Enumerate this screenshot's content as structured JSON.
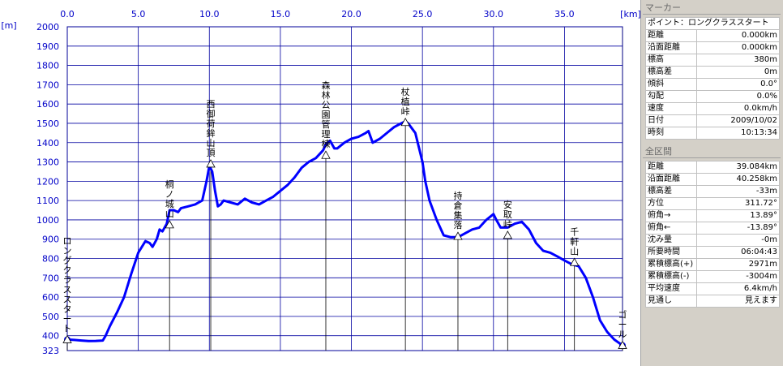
{
  "chart_data": {
    "type": "line",
    "xunit": "[km]",
    "yunit": "[m]",
    "x_ticks": [
      "0.0",
      "5.0",
      "10.0",
      "15.0",
      "20.0",
      "25.0",
      "30.0",
      "35.0"
    ],
    "x_tick_values": [
      0,
      5,
      10,
      15,
      20,
      25,
      30,
      35
    ],
    "y_ticks": [
      "2000",
      "1900",
      "1800",
      "1700",
      "1600",
      "1500",
      "1400",
      "1300",
      "1200",
      "1100",
      "1000",
      "900",
      "800",
      "700",
      "600",
      "500",
      "400",
      "323"
    ],
    "y_tick_values": [
      2000,
      1900,
      1800,
      1700,
      1600,
      1500,
      1400,
      1300,
      1200,
      1100,
      1000,
      900,
      800,
      700,
      600,
      500,
      400,
      323
    ],
    "xlim": [
      0,
      39.084
    ],
    "ylim": [
      323,
      2000
    ],
    "line_color": "#0000ff",
    "series": [
      {
        "x": [
          0,
          0.5,
          1,
          1.5,
          2,
          2.5,
          2.7,
          3,
          3.5,
          4,
          4.5,
          5,
          5.5,
          5.8,
          6,
          6.3,
          6.5,
          6.7,
          7,
          7.2,
          7.5,
          7.8,
          8,
          8.5,
          9,
          9.5,
          9.8,
          10,
          10.2,
          10.4,
          10.6,
          10.8,
          11,
          11.5,
          12,
          12.5,
          13,
          13.5,
          14,
          14.5,
          15,
          15.5,
          16,
          16.5,
          17,
          17.5,
          18,
          18.2,
          18.5,
          18.8,
          19,
          19.5,
          20,
          20.5,
          21,
          21.2,
          21.5,
          22,
          22.5,
          23,
          23.5,
          23.8,
          24,
          24.5,
          25,
          25.2,
          25.5,
          26,
          26.5,
          27,
          27.5,
          28,
          28.5,
          29,
          29.5,
          30,
          30.2,
          30.5,
          31,
          31.5,
          32,
          32.5,
          33,
          33.5,
          34,
          34.5,
          35,
          35.5,
          36,
          36.5,
          37,
          37.5,
          38,
          38.5,
          39.084
        ],
        "y": [
          380,
          378,
          375,
          372,
          373,
          375,
          400,
          450,
          520,
          600,
          720,
          830,
          890,
          880,
          860,
          900,
          950,
          940,
          980,
          1050,
          1050,
          1040,
          1060,
          1070,
          1080,
          1100,
          1200,
          1280,
          1250,
          1150,
          1070,
          1080,
          1100,
          1090,
          1080,
          1110,
          1090,
          1080,
          1100,
          1120,
          1150,
          1180,
          1220,
          1270,
          1300,
          1320,
          1360,
          1390,
          1410,
          1370,
          1370,
          1400,
          1420,
          1430,
          1450,
          1460,
          1400,
          1420,
          1450,
          1480,
          1500,
          1510,
          1500,
          1450,
          1300,
          1200,
          1100,
          1000,
          920,
          910,
          910,
          930,
          950,
          960,
          1000,
          1030,
          1000,
          960,
          960,
          980,
          990,
          950,
          880,
          840,
          830,
          810,
          790,
          770,
          760,
          700,
          600,
          480,
          420,
          380,
          350
        ]
      }
    ],
    "markers": [
      {
        "label": "ロングクラススタート",
        "x": 0,
        "y": 380
      },
      {
        "label": "桐ノ城山",
        "x": 7.2,
        "y": 975
      },
      {
        "label": "西御荷鉾山頂",
        "x": 10.1,
        "y": 1290
      },
      {
        "label": "森林公園管理棟",
        "x": 18.2,
        "y": 1335
      },
      {
        "label": "杖植峠",
        "x": 23.8,
        "y": 1505
      },
      {
        "label": "持倉集落",
        "x": 27.5,
        "y": 915
      },
      {
        "label": "安取峠",
        "x": 31,
        "y": 920
      },
      {
        "label": "千軒山",
        "x": 35.7,
        "y": 780
      },
      {
        "label": "ゴール",
        "x": 39.084,
        "y": 350
      }
    ]
  },
  "sidebar": {
    "marker_title": "マーカー",
    "marker_point": "ポイント：ロングクラススタート",
    "marker_rows": [
      {
        "k": "距離",
        "v": "0.000km"
      },
      {
        "k": "沿面距離",
        "v": "0.000km"
      },
      {
        "k": "標高",
        "v": "380m"
      },
      {
        "k": "標高差",
        "v": "0m"
      },
      {
        "k": "傾斜",
        "v": "0.0°"
      },
      {
        "k": "勾配",
        "v": "0.0%"
      },
      {
        "k": "速度",
        "v": "0.0km/h"
      },
      {
        "k": "日付",
        "v": "2009/10/02"
      },
      {
        "k": "時刻",
        "v": "10:13:34"
      }
    ],
    "range_title": "全区間",
    "range_rows": [
      {
        "k": "距離",
        "v": "39.084km"
      },
      {
        "k": "沿面距離",
        "v": "40.258km"
      },
      {
        "k": "標高差",
        "v": "-33m"
      },
      {
        "k": "方位",
        "v": "311.72°"
      },
      {
        "k": "俯角→",
        "v": "13.89°"
      },
      {
        "k": "俯角←",
        "v": "-13.89°"
      },
      {
        "k": "沈み量",
        "v": "-0m"
      },
      {
        "k": "所要時間",
        "v": "06:04:43"
      },
      {
        "k": "累積標高(+)",
        "v": "2971m"
      },
      {
        "k": "累積標高(-)",
        "v": "-3004m"
      },
      {
        "k": "平均速度",
        "v": "6.4km/h"
      },
      {
        "k": "見通し",
        "v": "見えます"
      }
    ]
  }
}
